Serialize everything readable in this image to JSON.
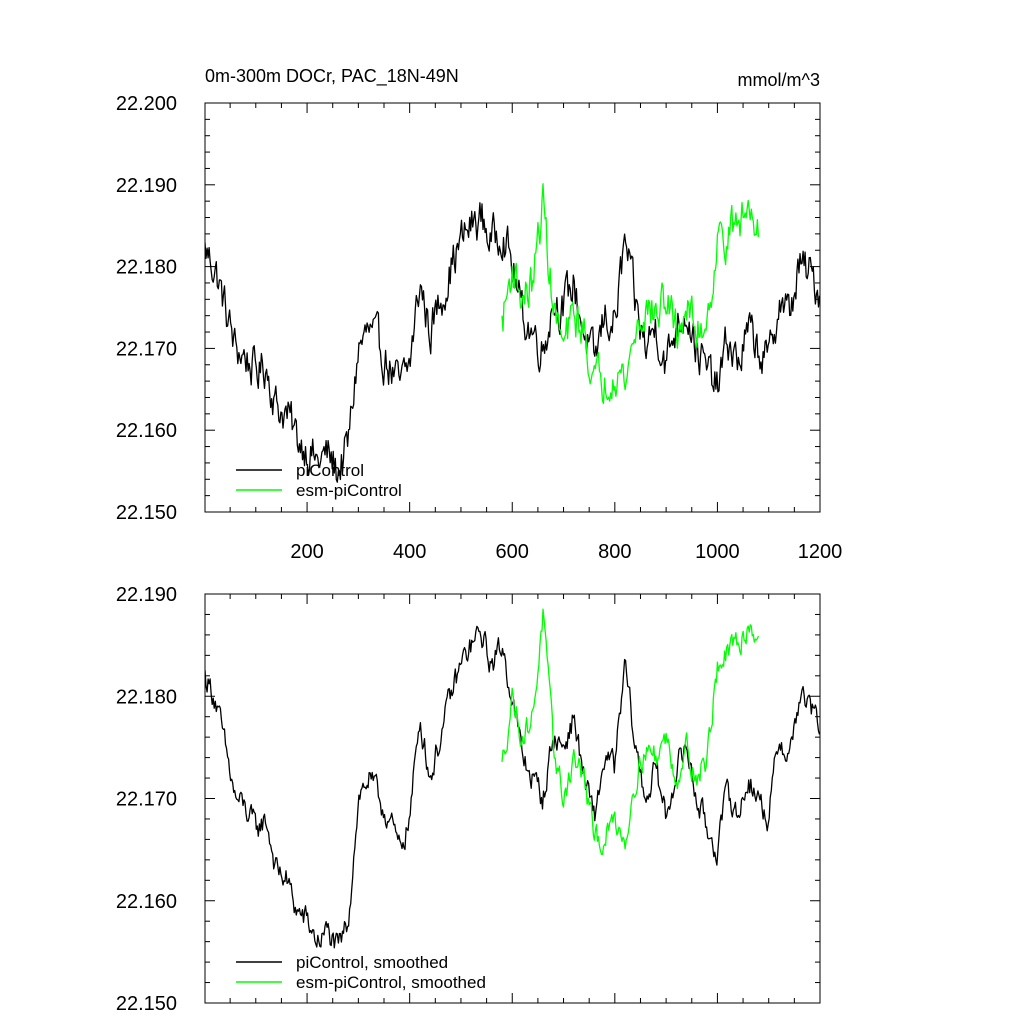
{
  "chart_data": [
    {
      "type": "line",
      "title": "0m-300m DOCr, PAC_18N-49N",
      "units": "mmol/m^3",
      "xlim": [
        1,
        1200
      ],
      "ylim": [
        22.15,
        22.2
      ],
      "xticks": [
        200,
        400,
        600,
        800,
        1000,
        1200
      ],
      "xtick_labels": [
        "200",
        "400",
        "600",
        "800",
        "1000",
        "1200"
      ],
      "yticks": [
        22.15,
        22.16,
        22.17,
        22.18,
        22.19,
        22.2
      ],
      "ytick_labels": [
        "22.150",
        "22.160",
        "22.170",
        "22.180",
        "22.190",
        "22.200"
      ],
      "legend_position": "bottom-left",
      "grid": false,
      "series": [
        {
          "name": "piControl",
          "color": "#000000",
          "noise": 0.0022,
          "x": [
            1,
            20,
            40,
            60,
            80,
            100,
            120,
            140,
            160,
            180,
            200,
            220,
            240,
            260,
            280,
            300,
            320,
            340,
            360,
            380,
            400,
            420,
            440,
            460,
            480,
            500,
            520,
            540,
            560,
            580,
            600,
            620,
            640,
            660,
            680,
            700,
            720,
            740,
            760,
            780,
            800,
            820,
            840,
            860,
            880,
            900,
            920,
            940,
            960,
            980,
            1000,
            1020,
            1040,
            1060,
            1080,
            1100,
            1120,
            1140,
            1160,
            1180,
            1200
          ],
          "values": [
            22.182,
            22.18,
            22.175,
            22.17,
            22.169,
            22.167,
            22.168,
            22.163,
            22.162,
            22.159,
            22.158,
            22.156,
            22.157,
            22.155,
            22.158,
            22.17,
            22.172,
            22.17,
            22.168,
            22.165,
            22.168,
            22.178,
            22.172,
            22.176,
            22.18,
            22.183,
            22.185,
            22.186,
            22.183,
            22.185,
            22.18,
            22.174,
            22.172,
            22.17,
            22.176,
            22.175,
            22.178,
            22.172,
            22.168,
            22.174,
            22.173,
            22.183,
            22.175,
            22.17,
            22.173,
            22.168,
            22.173,
            22.175,
            22.17,
            22.167,
            22.165,
            22.171,
            22.168,
            22.172,
            22.17,
            22.168,
            22.176,
            22.174,
            22.18,
            22.179,
            22.177
          ]
        },
        {
          "name": "esm-piControl",
          "color": "#00ff00",
          "noise": 0.0022,
          "x": [
            580,
            600,
            620,
            640,
            660,
            680,
            700,
            720,
            740,
            760,
            780,
            800,
            820,
            840,
            860,
            880,
            900,
            920,
            940,
            960,
            980,
            1000,
            1020,
            1040,
            1060,
            1080
          ],
          "values": [
            22.173,
            22.18,
            22.176,
            22.178,
            22.188,
            22.175,
            22.17,
            22.174,
            22.172,
            22.166,
            22.166,
            22.168,
            22.166,
            22.172,
            22.175,
            22.174,
            22.176,
            22.172,
            22.175,
            22.172,
            22.174,
            22.183,
            22.184,
            22.185,
            22.187,
            22.186
          ]
        }
      ]
    },
    {
      "type": "line",
      "xlim": [
        1,
        1200
      ],
      "ylim": [
        22.15,
        22.19
      ],
      "xticks": [
        200,
        400,
        600,
        800,
        1000,
        1200
      ],
      "yticks": [
        22.15,
        22.16,
        22.17,
        22.18,
        22.19
      ],
      "ytick_labels": [
        "22.150",
        "22.160",
        "22.170",
        "22.180",
        "22.190"
      ],
      "legend_position": "bottom-left",
      "grid": false,
      "series": [
        {
          "name": "piControl, smoothed",
          "color": "#000000",
          "noise": 0.0011,
          "x": [
            1,
            20,
            40,
            60,
            80,
            100,
            120,
            140,
            160,
            180,
            200,
            220,
            240,
            260,
            280,
            300,
            320,
            340,
            360,
            380,
            400,
            420,
            440,
            460,
            480,
            500,
            520,
            540,
            560,
            580,
            600,
            620,
            640,
            660,
            680,
            700,
            720,
            740,
            760,
            780,
            800,
            820,
            840,
            860,
            880,
            900,
            920,
            940,
            960,
            980,
            1000,
            1020,
            1040,
            1060,
            1080,
            1100,
            1120,
            1140,
            1160,
            1180,
            1200
          ],
          "values": [
            22.182,
            22.18,
            22.175,
            22.17,
            22.169,
            22.167,
            22.168,
            22.163,
            22.162,
            22.159,
            22.158,
            22.156,
            22.157,
            22.155,
            22.158,
            22.17,
            22.172,
            22.17,
            22.168,
            22.165,
            22.168,
            22.178,
            22.172,
            22.176,
            22.18,
            22.183,
            22.185,
            22.186,
            22.183,
            22.185,
            22.18,
            22.174,
            22.172,
            22.17,
            22.176,
            22.175,
            22.178,
            22.172,
            22.168,
            22.174,
            22.173,
            22.183,
            22.175,
            22.17,
            22.173,
            22.168,
            22.173,
            22.175,
            22.17,
            22.167,
            22.165,
            22.171,
            22.168,
            22.172,
            22.17,
            22.168,
            22.176,
            22.174,
            22.18,
            22.179,
            22.177
          ]
        },
        {
          "name": "esm-piControl, smoothed",
          "color": "#00ff00",
          "noise": 0.0011,
          "x": [
            580,
            600,
            620,
            640,
            660,
            680,
            700,
            720,
            740,
            760,
            780,
            800,
            820,
            840,
            860,
            880,
            900,
            920,
            940,
            960,
            980,
            1000,
            1020,
            1040,
            1060,
            1080
          ],
          "values": [
            22.173,
            22.18,
            22.176,
            22.178,
            22.188,
            22.175,
            22.17,
            22.174,
            22.172,
            22.166,
            22.166,
            22.168,
            22.166,
            22.172,
            22.175,
            22.174,
            22.176,
            22.172,
            22.175,
            22.172,
            22.174,
            22.183,
            22.184,
            22.185,
            22.187,
            22.186
          ]
        }
      ]
    }
  ]
}
